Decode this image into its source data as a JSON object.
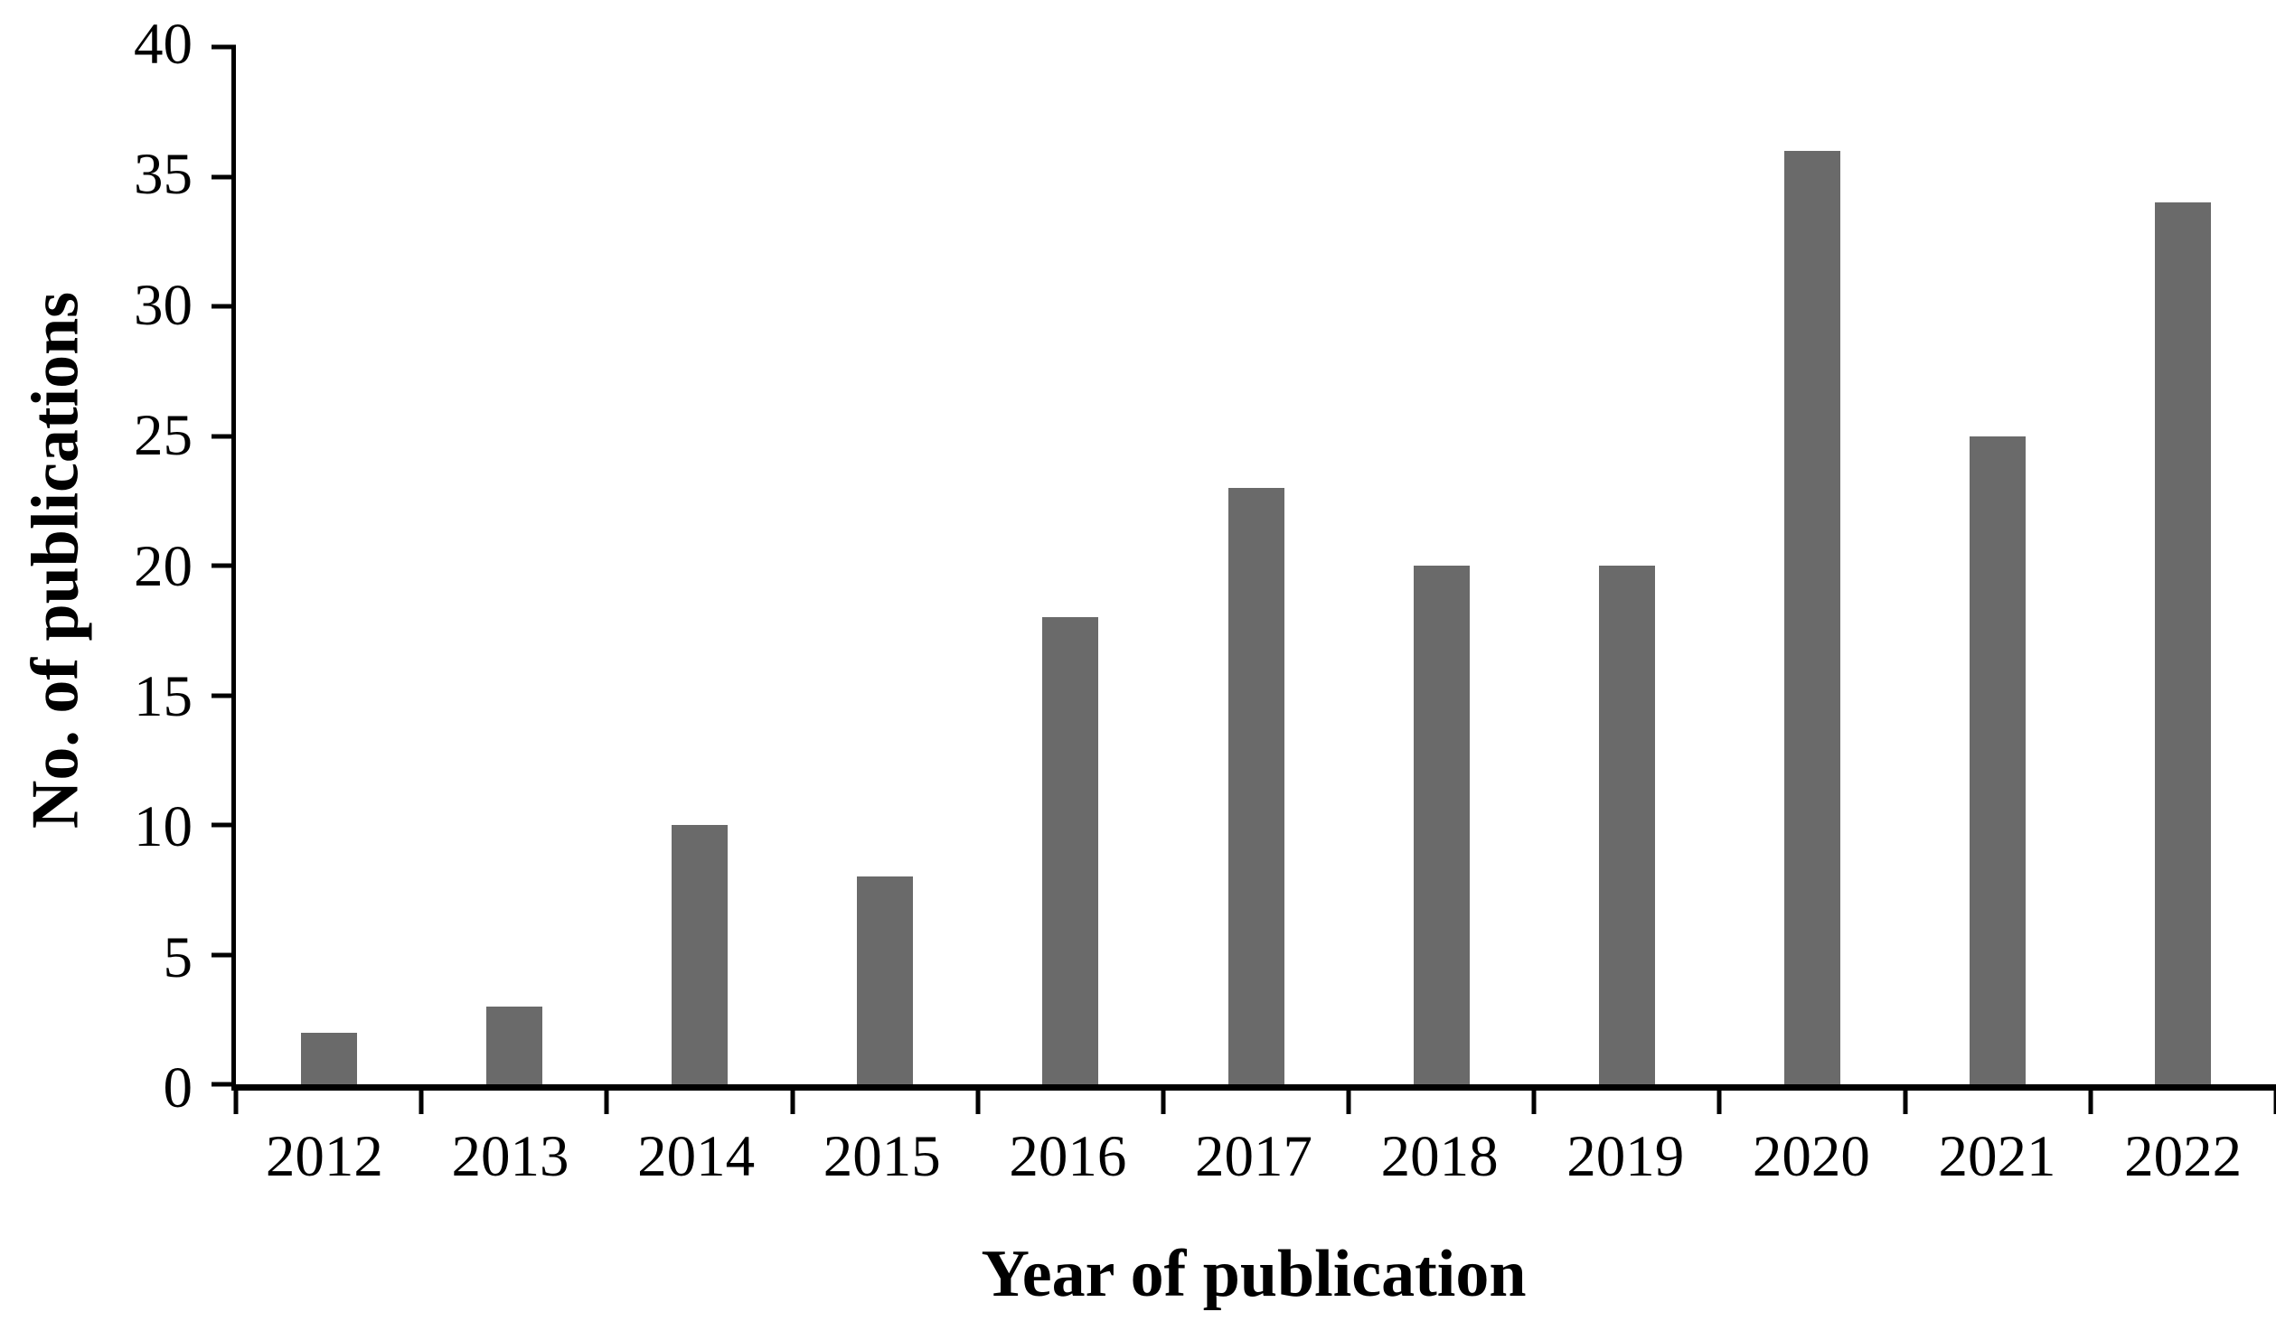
{
  "chart_data": {
    "type": "bar",
    "categories": [
      "2012",
      "2013",
      "2014",
      "2015",
      "2016",
      "2017",
      "2018",
      "2019",
      "2020",
      "2021",
      "2022"
    ],
    "values": [
      2,
      3,
      10,
      8,
      18,
      23,
      20,
      20,
      36,
      25,
      34
    ],
    "title": "",
    "xlabel": "Year of publication",
    "ylabel": "No. of publications",
    "ylim": [
      0,
      40
    ],
    "yticks": [
      0,
      5,
      10,
      15,
      20,
      25,
      30,
      35,
      40
    ],
    "grid": false,
    "legend": false,
    "bar_color": "#6a6a6a",
    "axis_color": "#000000",
    "background_color": "#ffffff"
  }
}
